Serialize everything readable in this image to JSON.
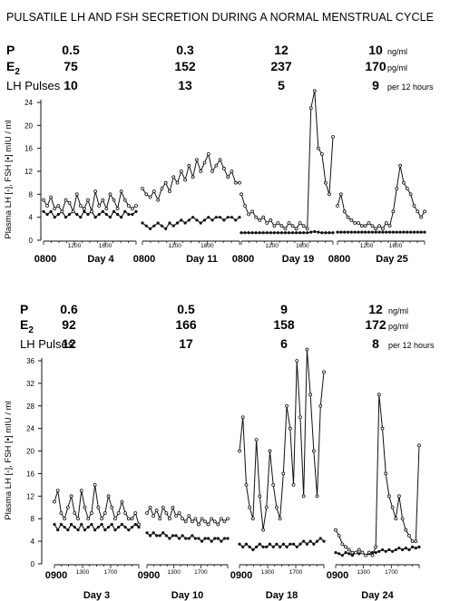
{
  "title": "PULSATILE LH AND FSH SECRETION DURING A NORMAL MENSTRUAL CYCLE",
  "row_labels": {
    "p": "P",
    "e2": "E",
    "e2_sub": "2",
    "lh": "LH Pulses"
  },
  "units": {
    "top": {
      "p": "ng/ml",
      "e2": "pg/ml",
      "lh": "per 12 hours"
    },
    "bottom": {
      "p": "ng/ml",
      "e2": "pg/ml",
      "lh": "per 12 hours"
    }
  },
  "ylabel": "Plasma LH [◦], FSH [•] mIU / ml",
  "colors": {
    "ink": "#111111"
  },
  "chart_data": [
    {
      "type": "line",
      "panel": "top",
      "ylim": [
        0,
        24
      ],
      "yticks": [
        "24",
        "20",
        "16",
        "12",
        "8",
        "4",
        "0"
      ],
      "start_label": "0800",
      "xticks": [
        "1200",
        "1600"
      ],
      "series_markers": {
        "LH": "open-circle",
        "FSH": "filled-circle"
      },
      "days": [
        {
          "day": "Day 4",
          "P": "0.5",
          "E2": "75",
          "LH_pulses": "10",
          "LH": [
            7,
            6,
            7.5,
            5.5,
            6,
            5,
            7,
            6.5,
            5,
            8,
            6,
            5.5,
            7,
            5,
            8.5,
            6,
            7,
            5.5,
            8,
            7,
            5.5,
            8.5,
            7,
            6,
            5.5,
            6
          ],
          "FSH": [
            5,
            4.5,
            5,
            4,
            4.5,
            5,
            4,
            4.5,
            5,
            4.5,
            4,
            5,
            4.5,
            5,
            4,
            4.5,
            5,
            4.5,
            4,
            5,
            4.5,
            4,
            5,
            4.5,
            4.5,
            5
          ]
        },
        {
          "day": "Day 11",
          "P": "0.3",
          "E2": "152",
          "LH_pulses": "13",
          "LH": [
            9,
            8,
            7.5,
            8.5,
            7,
            9,
            10,
            8.5,
            11,
            10,
            12,
            10.5,
            13,
            11,
            14,
            12,
            13.5,
            15,
            12,
            13,
            14,
            12.5,
            11,
            12,
            10,
            10
          ],
          "FSH": [
            3,
            2.5,
            2,
            2.5,
            3,
            2.5,
            2,
            3,
            2.5,
            3,
            3.5,
            3,
            3.5,
            4,
            3.5,
            3,
            3.5,
            4,
            3.5,
            4,
            4,
            3.5,
            4,
            4,
            3.5,
            4
          ]
        },
        {
          "day": "Day 19",
          "P": "12",
          "E2": "237",
          "LH_pulses": "5",
          "LH": [
            8,
            6,
            4.5,
            5,
            4,
            3.5,
            4,
            3,
            3.5,
            2.5,
            3,
            2.5,
            2,
            3,
            2.5,
            2,
            3,
            2.5,
            2,
            23,
            26,
            16,
            15,
            10,
            8,
            18
          ],
          "FSH": [
            1.3,
            1.3,
            1.3,
            1.3,
            1.3,
            1.3,
            1.3,
            1.3,
            1.3,
            1.3,
            1.3,
            1.3,
            1.3,
            1.3,
            1.3,
            1.3,
            1.3,
            1.3,
            1.3,
            1.4,
            1.5,
            1.4,
            1.3,
            1.3,
            1.3,
            1.3
          ]
        },
        {
          "day": "Day 25",
          "P": "10",
          "E2": "170",
          "LH_pulses": "9",
          "LH": [
            6,
            8,
            5,
            4,
            3.5,
            3,
            3,
            2.5,
            2.5,
            3,
            2.5,
            2,
            2.5,
            2,
            3,
            2.5,
            5,
            9,
            13,
            10,
            9,
            8,
            6,
            5,
            4,
            5
          ],
          "FSH": [
            1.4,
            1.4,
            1.4,
            1.4,
            1.4,
            1.4,
            1.4,
            1.4,
            1.4,
            1.4,
            1.4,
            1.4,
            1.4,
            1.4,
            1.4,
            1.4,
            1.4,
            1.4,
            1.4,
            1.4,
            1.4,
            1.4,
            1.4,
            1.4,
            1.4,
            1.4
          ]
        }
      ]
    },
    {
      "type": "line",
      "panel": "bottom",
      "ylim": [
        0,
        36
      ],
      "yticks": [
        "36",
        "32",
        "28",
        "24",
        "20",
        "16",
        "12",
        "8",
        "4",
        "0"
      ],
      "start_label": "0900",
      "xticks": [
        "1300",
        "1700"
      ],
      "series_markers": {
        "LH": "open-circle",
        "FSH": "filled-circle"
      },
      "days": [
        {
          "day": "Day 3",
          "P": "0.6",
          "E2": "92",
          "LH_pulses": "12",
          "LH": [
            11,
            13,
            9,
            8,
            10,
            12,
            9,
            8,
            13,
            10,
            8,
            9,
            14,
            10,
            8,
            9,
            12,
            10,
            8,
            9,
            11,
            9,
            8,
            8,
            9,
            7
          ],
          "FSH": [
            7,
            6,
            7,
            6.5,
            6,
            7,
            6.5,
            6,
            7,
            6,
            6.5,
            7,
            6,
            6.5,
            7,
            6,
            6.5,
            7,
            6,
            6.5,
            7,
            6.5,
            6,
            6.5,
            7,
            6.5
          ]
        },
        {
          "day": "Day 10",
          "P": "0.5",
          "E2": "166",
          "LH_pulses": "17",
          "LH": [
            9,
            10,
            8.5,
            9.5,
            8,
            10,
            9,
            8,
            10,
            8.5,
            9,
            8,
            7.5,
            8.5,
            7.5,
            8,
            7,
            8,
            7.5,
            7,
            8,
            7.5,
            7,
            8,
            7.5,
            8
          ],
          "FSH": [
            5.5,
            5,
            5.5,
            5,
            5,
            5.5,
            5,
            4.5,
            5,
            5,
            4.5,
            5,
            4.5,
            4.5,
            5,
            4.5,
            4.5,
            4,
            4.5,
            4.5,
            4,
            4.5,
            4.5,
            4,
            4.5,
            4.5
          ]
        },
        {
          "day": "Day 18",
          "P": "9",
          "E2": "158",
          "LH_pulses": "6",
          "LH": [
            20,
            26,
            14,
            10,
            8,
            22,
            12,
            6,
            10,
            20,
            14,
            10,
            8,
            16,
            28,
            24,
            14,
            36,
            26,
            12,
            38,
            30,
            20,
            12,
            28,
            34
          ],
          "FSH": [
            3.5,
            3,
            3.5,
            3,
            2.5,
            3,
            3.5,
            3,
            3,
            3.5,
            3,
            3.5,
            3,
            3.5,
            3,
            3.5,
            3.5,
            3,
            3.5,
            4,
            3.5,
            4,
            3.5,
            4,
            4.5,
            4
          ]
        },
        {
          "day": "Day 24",
          "P": "12",
          "E2": "172",
          "LH_pulses": "8",
          "LH": [
            6,
            5,
            3.5,
            3,
            2.5,
            2,
            2,
            2.5,
            2,
            1.5,
            2,
            1.5,
            3,
            30,
            24,
            16,
            12,
            10,
            8,
            12,
            8,
            6,
            5,
            4,
            4,
            21
          ],
          "FSH": [
            2,
            1.8,
            1.5,
            2,
            1.8,
            1.5,
            2,
            1.8,
            2,
            1.5,
            1.8,
            2,
            2,
            2.2,
            2.5,
            2.2,
            2.5,
            2.2,
            2.5,
            2.8,
            2.5,
            2.8,
            2.5,
            3,
            2.8,
            3
          ]
        }
      ]
    }
  ]
}
